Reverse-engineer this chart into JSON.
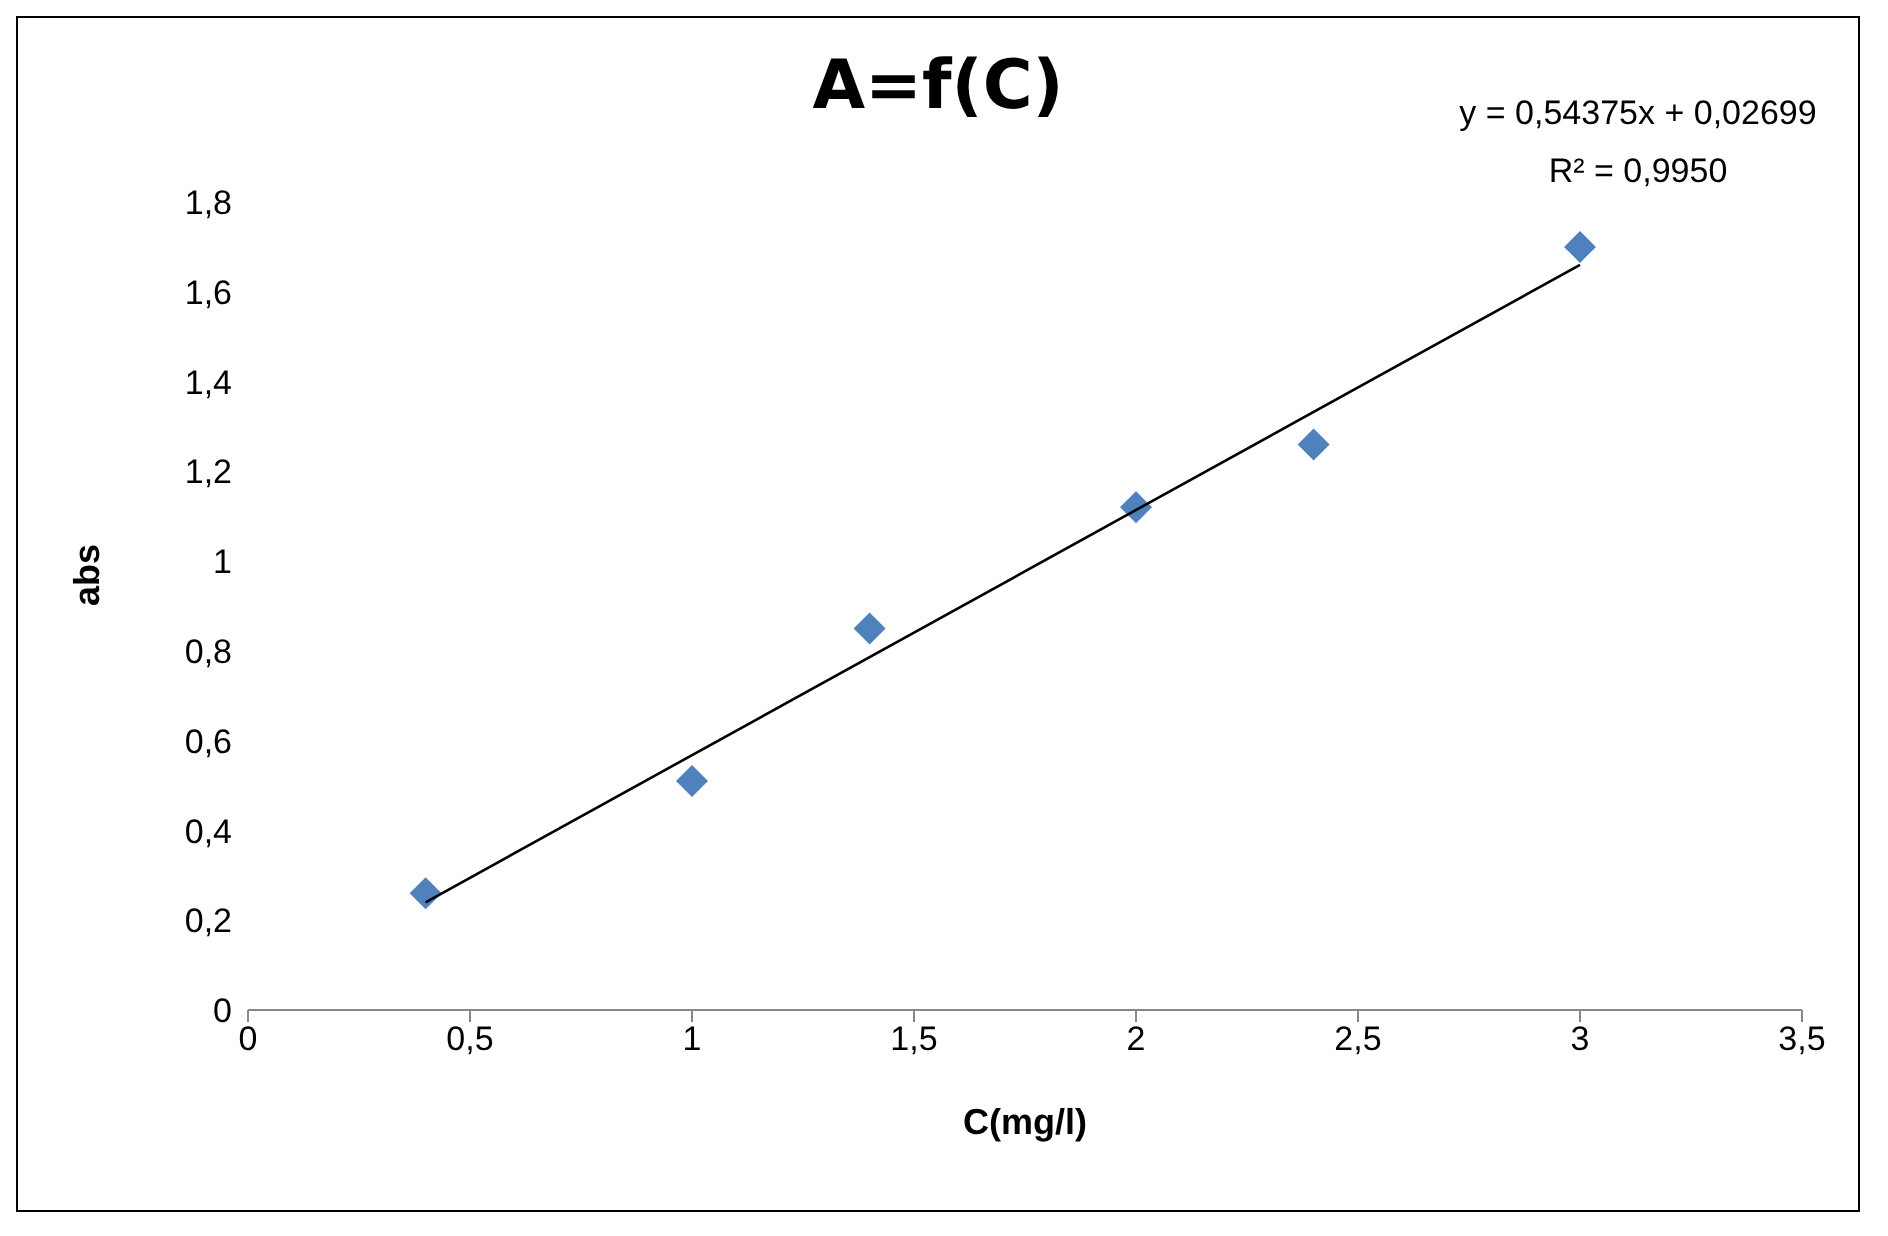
{
  "chart_data": {
    "type": "scatter",
    "title": "A=f(C)",
    "xlabel": "C(mg/l)",
    "ylabel": "abs",
    "x": [
      0.4,
      1,
      1.4,
      2,
      2.4,
      3
    ],
    "series": [
      {
        "color": "#4f81bd",
        "values": [
          0.26,
          0.51,
          0.85,
          1.12,
          1.26,
          1.7
        ],
        "marker": "diamond"
      },
      {
        "type": "line",
        "color": "#000000",
        "x": [
          0.4,
          3
        ],
        "values": [
          0.24,
          1.66
        ],
        "marker": "none"
      }
    ],
    "xlim": [
      0,
      3.5
    ],
    "xticks": [
      {
        "value": 0,
        "label": "0"
      },
      {
        "value": 0.5,
        "label": "0,5"
      },
      {
        "value": 1,
        "label": "1"
      },
      {
        "value": 1.5,
        "label": "1,5"
      },
      {
        "value": 2,
        "label": "2"
      },
      {
        "value": 2.5,
        "label": "2,5"
      },
      {
        "value": 3,
        "label": "3"
      },
      {
        "value": 3.5,
        "label": "3,5"
      }
    ],
    "ylim": [
      0,
      1.8
    ],
    "yticks": [
      {
        "value": 0,
        "label": "0"
      },
      {
        "value": 0.2,
        "label": "0,2"
      },
      {
        "value": 0.4,
        "label": "0,4"
      },
      {
        "value": 0.6,
        "label": "0,6"
      },
      {
        "value": 0.8,
        "label": "0,8"
      },
      {
        "value": 1,
        "label": "1"
      },
      {
        "value": 1.2,
        "label": "1,2"
      },
      {
        "value": 1.4,
        "label": "1,4"
      },
      {
        "value": 1.6,
        "label": "1,6"
      },
      {
        "value": 1.8,
        "label": "1,8"
      }
    ],
    "annotations": [
      "y = 0,54375x + 0,02699",
      "R² = 0,9950"
    ],
    "grid": false,
    "legend": false
  }
}
